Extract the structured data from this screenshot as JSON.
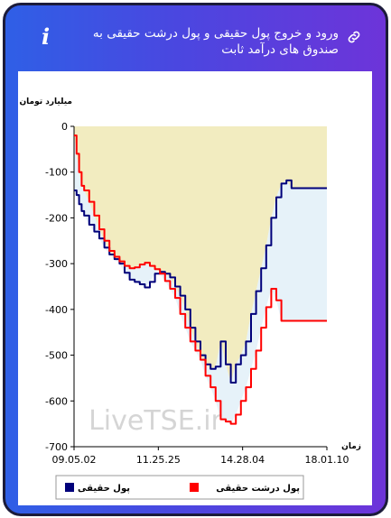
{
  "header": {
    "title": "ورود و خروج پول حقیقی و پول درشت حقیقی به صندوق های درآمد ثابت"
  },
  "icons": {
    "info": "info-icon",
    "link": "link-icon"
  },
  "watermark": "LiveTSE.ir",
  "colors": {
    "real_money": "#00007a",
    "big_real_money": "#ff0000",
    "fill_area": "#f2ecc0",
    "fill_area_alt": "#dcecf7",
    "header_gradient_start": "#2f5fe6",
    "header_gradient_end": "#6d34d9"
  },
  "chart_data": {
    "type": "line",
    "ylabel": "میلیارد تومان",
    "xlabel": "زمان",
    "ylim": [
      -700,
      0
    ],
    "yticks": [
      0,
      -100,
      -200,
      -300,
      -400,
      -500,
      -600,
      -700
    ],
    "xtick_labels": [
      "09.05.02",
      "11.25.25",
      "14.28.04",
      "18.01.10"
    ],
    "grid": false,
    "legend_position": "bottom",
    "series": [
      {
        "name": "پول حقیقی",
        "color": "#00007a",
        "x": [
          0,
          1,
          2,
          3,
          4,
          6,
          8,
          10,
          12,
          14,
          16,
          18,
          20,
          22,
          24,
          26,
          28,
          30,
          32,
          34,
          36,
          38,
          40,
          42,
          44,
          46,
          48,
          50,
          52,
          54,
          56,
          58,
          60,
          62,
          64,
          66,
          68,
          70,
          72,
          74,
          76,
          78,
          80,
          82,
          84,
          86,
          88,
          90,
          92,
          94,
          95,
          96,
          97,
          98,
          99,
          100
        ],
        "values": [
          -140,
          -150,
          -170,
          -185,
          -195,
          -215,
          -230,
          -245,
          -265,
          -280,
          -290,
          -300,
          -320,
          -335,
          -340,
          -345,
          -352,
          -340,
          -322,
          -318,
          -322,
          -330,
          -350,
          -370,
          -400,
          -440,
          -470,
          -500,
          -520,
          -530,
          -525,
          -470,
          -520,
          -560,
          -520,
          -500,
          -470,
          -410,
          -360,
          -310,
          -260,
          -200,
          -155,
          -125,
          -118,
          -135,
          -135,
          -135,
          -135,
          -135,
          -135,
          -135,
          -135,
          -135,
          -135,
          -135
        ]
      },
      {
        "name": "پول درشت حقیقی",
        "color": "#ff0000",
        "x": [
          0,
          1,
          2,
          3,
          4,
          6,
          8,
          10,
          12,
          14,
          16,
          18,
          20,
          22,
          24,
          26,
          28,
          30,
          32,
          34,
          36,
          38,
          40,
          42,
          44,
          46,
          48,
          50,
          52,
          54,
          56,
          58,
          60,
          62,
          64,
          66,
          68,
          70,
          72,
          74,
          76,
          78,
          80,
          82,
          84,
          86,
          88,
          90,
          92,
          94,
          95,
          96,
          97,
          98,
          99,
          100
        ],
        "values": [
          -20,
          -60,
          -100,
          -130,
          -140,
          -165,
          -195,
          -225,
          -250,
          -272,
          -285,
          -295,
          -305,
          -310,
          -308,
          -302,
          -298,
          -305,
          -312,
          -322,
          -338,
          -355,
          -375,
          -410,
          -440,
          -470,
          -490,
          -510,
          -545,
          -570,
          -600,
          -640,
          -645,
          -650,
          -630,
          -600,
          -570,
          -530,
          -490,
          -440,
          -395,
          -355,
          -380,
          -425,
          -425,
          -425,
          -425,
          -425,
          -425,
          -425,
          -425,
          -425,
          -425,
          -425,
          -425,
          -425
        ]
      }
    ]
  }
}
